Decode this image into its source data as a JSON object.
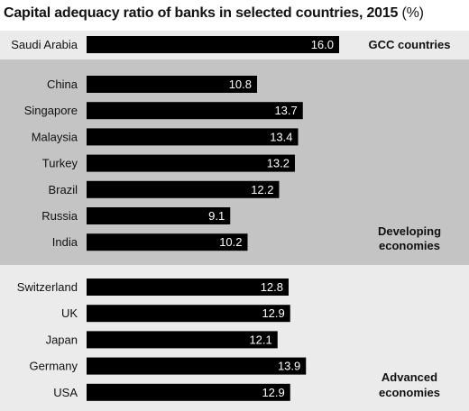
{
  "chart_data": {
    "type": "bar",
    "orientation": "horizontal",
    "title": "Capital adequacy ratio of banks in selected countries, 2015",
    "title_unit": "(%)",
    "xlim": [
      0,
      16.0
    ],
    "groups": [
      {
        "label_lines": [
          "GCC countries"
        ],
        "background": "#ebebeb",
        "categories": [
          "Saudi Arabia"
        ],
        "values": [
          16.0
        ]
      },
      {
        "label_lines": [
          "Developing",
          "economies"
        ],
        "background": "#c4c4c4",
        "categories": [
          "China",
          "Singapore",
          "Malaysia",
          "Turkey",
          "Brazil",
          "Russia",
          "India"
        ],
        "values": [
          10.8,
          13.7,
          13.4,
          13.2,
          12.2,
          9.1,
          10.2
        ]
      },
      {
        "label_lines": [
          "Advanced",
          "economies"
        ],
        "background": "#ebebeb",
        "categories": [
          "Switzerland",
          "UK",
          "Japan",
          "Germany",
          "USA"
        ],
        "values": [
          12.8,
          12.9,
          12.1,
          13.9,
          12.9
        ]
      }
    ],
    "bar_color": "#000000",
    "value_label_color": "#ffffff"
  }
}
